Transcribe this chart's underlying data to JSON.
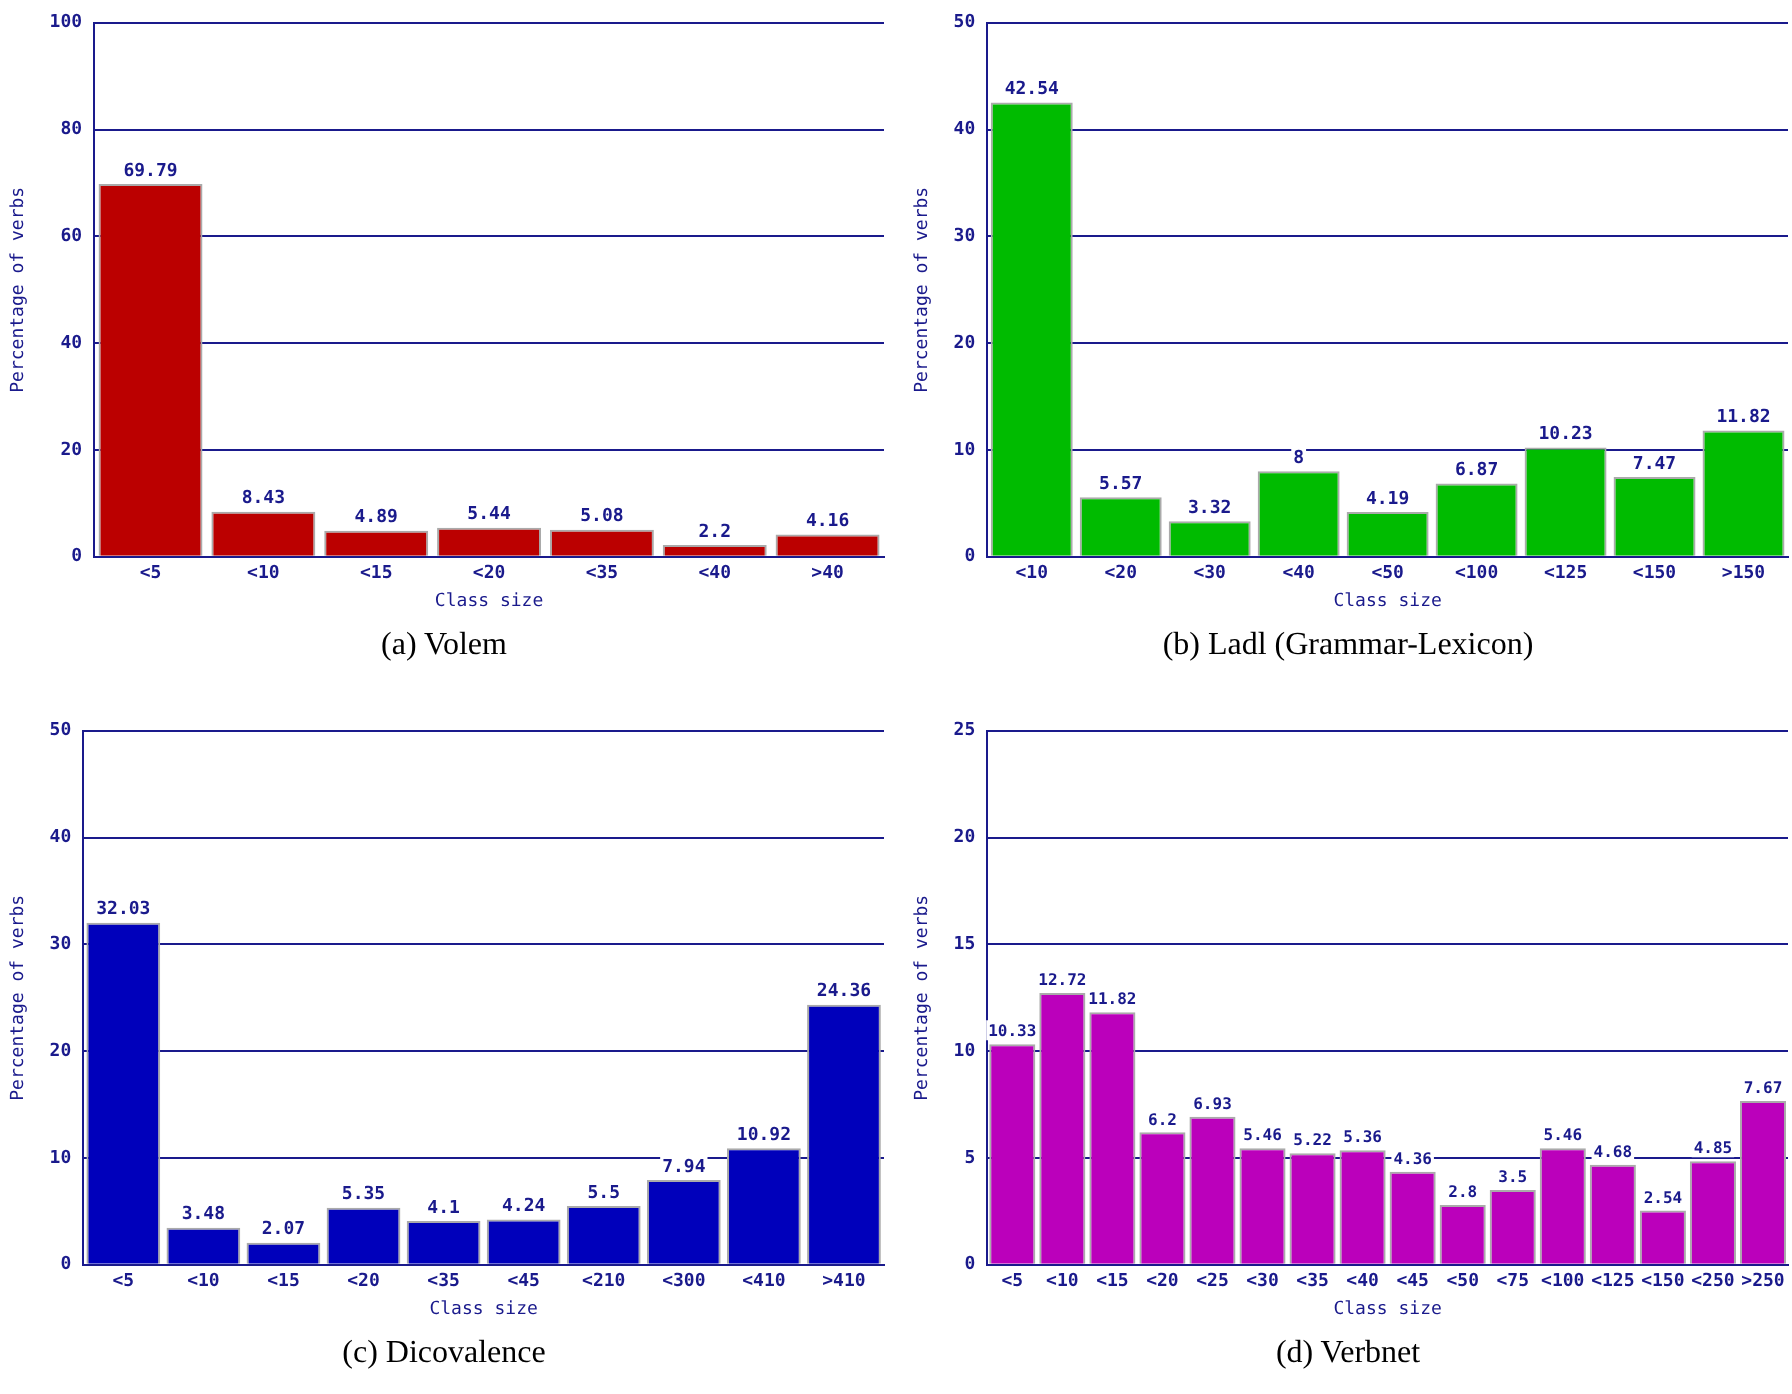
{
  "chart_data": [
    {
      "type": "bar",
      "title": "(a) Volem",
      "xlabel": "Class size",
      "ylabel": "Percentage of verbs",
      "categories": [
        "<5",
        "<10",
        "<15",
        "<20",
        "<35",
        "<40",
        ">40"
      ],
      "values": [
        69.79,
        8.43,
        4.89,
        5.44,
        5.08,
        2.2,
        4.16
      ],
      "color": "#bb0000",
      "ylim": [
        0,
        100
      ],
      "yticks": [
        0,
        20,
        40,
        60,
        80,
        100
      ],
      "grid": "y",
      "data_labels": true
    },
    {
      "type": "bar",
      "title": "(b) Ladl (Grammar-Lexicon)",
      "xlabel": "Class size",
      "ylabel": "Percentage of verbs",
      "categories": [
        "<10",
        "<20",
        "<30",
        "<40",
        "<50",
        "<100",
        "<125",
        "<150",
        ">150"
      ],
      "values": [
        42.54,
        5.57,
        3.32,
        8,
        4.19,
        6.87,
        10.23,
        7.47,
        11.82
      ],
      "color": "#00bb00",
      "ylim": [
        0,
        50
      ],
      "yticks": [
        0,
        10,
        20,
        30,
        40,
        50
      ],
      "grid": "y",
      "data_labels": true
    },
    {
      "type": "bar",
      "title": "(c) Dicovalence",
      "xlabel": "Class size",
      "ylabel": "Percentage of verbs",
      "categories": [
        "<5",
        "<10",
        "<15",
        "<20",
        "<35",
        "<45",
        "<210",
        "<300",
        "<410",
        ">410"
      ],
      "values": [
        32.03,
        3.48,
        2.07,
        5.35,
        4.1,
        4.24,
        5.5,
        7.94,
        10.92,
        24.36
      ],
      "color": "#0000bb",
      "ylim": [
        0,
        50
      ],
      "yticks": [
        0,
        10,
        20,
        30,
        40,
        50
      ],
      "grid": "y",
      "data_labels": true
    },
    {
      "type": "bar",
      "title": "(d) Verbnet",
      "xlabel": "Class size",
      "ylabel": "Percentage of verbs",
      "categories": [
        "<5",
        "<10",
        "<15",
        "<20",
        "<25",
        "<30",
        "<35",
        "<40",
        "<45",
        "<50",
        "<75",
        "<100",
        "<125",
        "<150",
        "<250",
        ">250"
      ],
      "values": [
        10.33,
        12.72,
        11.82,
        6.2,
        6.93,
        5.46,
        5.22,
        5.36,
        4.36,
        2.8,
        3.5,
        5.46,
        4.68,
        2.54,
        4.85,
        7.67
      ],
      "color": "#bb00bb",
      "ylim": [
        0,
        25
      ],
      "yticks": [
        0,
        5,
        10,
        15,
        20,
        25
      ],
      "grid": "y",
      "data_labels": true
    }
  ]
}
